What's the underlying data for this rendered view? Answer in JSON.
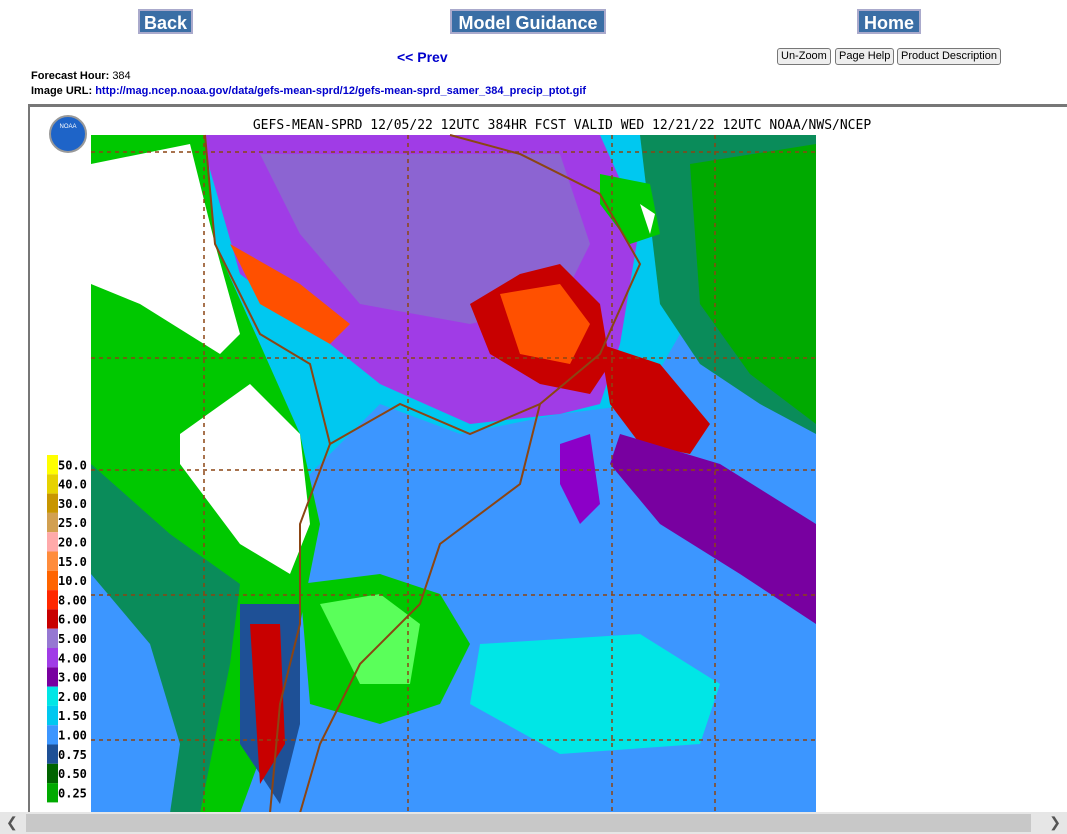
{
  "nav": {
    "back": "Back",
    "model_guidance": "Model Guidance",
    "home": "Home",
    "prev": "<< Prev",
    "unzoom": "Un-Zoom",
    "page_help": "Page Help",
    "product_description": "Product Description"
  },
  "info": {
    "forecast_hour_label": "Forecast Hour:",
    "forecast_hour": "384",
    "image_url_label": "Image URL:",
    "image_url": "http://mag.ncep.noaa.gov/data/gefs-mean-sprd/12/gefs-mean-sprd_samer_384_precip_ptot.gif"
  },
  "map": {
    "logo": "NOAA",
    "title": "GEFS-MEAN-SPRD 12/05/22 12UTC 384HR FCST VALID WED 12/21/22 12UTC NOAA/NWS/NCEP",
    "legend": [
      {
        "label": "50.0",
        "color": "#ffff00"
      },
      {
        "label": "40.0",
        "color": "#e6d200"
      },
      {
        "label": "30.0",
        "color": "#c89600"
      },
      {
        "label": "25.0",
        "color": "#d2a050"
      },
      {
        "label": "20.0",
        "color": "#ffaaaa"
      },
      {
        "label": "15.0",
        "color": "#ff8c3c"
      },
      {
        "label": "10.0",
        "color": "#ff6400"
      },
      {
        "label": "8.00",
        "color": "#ff2800"
      },
      {
        "label": "6.00",
        "color": "#c80000"
      },
      {
        "label": "5.00",
        "color": "#9678d2"
      },
      {
        "label": "4.00",
        "color": "#a03ce6"
      },
      {
        "label": "3.00",
        "color": "#7800a0"
      },
      {
        "label": "2.00",
        "color": "#00e6e6"
      },
      {
        "label": "1.50",
        "color": "#00c8f0"
      },
      {
        "label": "1.00",
        "color": "#3c96ff"
      },
      {
        "label": "0.75",
        "color": "#1e5096"
      },
      {
        "label": "0.50",
        "color": "#006400"
      },
      {
        "label": "0.25",
        "color": "#00aa00"
      }
    ]
  }
}
